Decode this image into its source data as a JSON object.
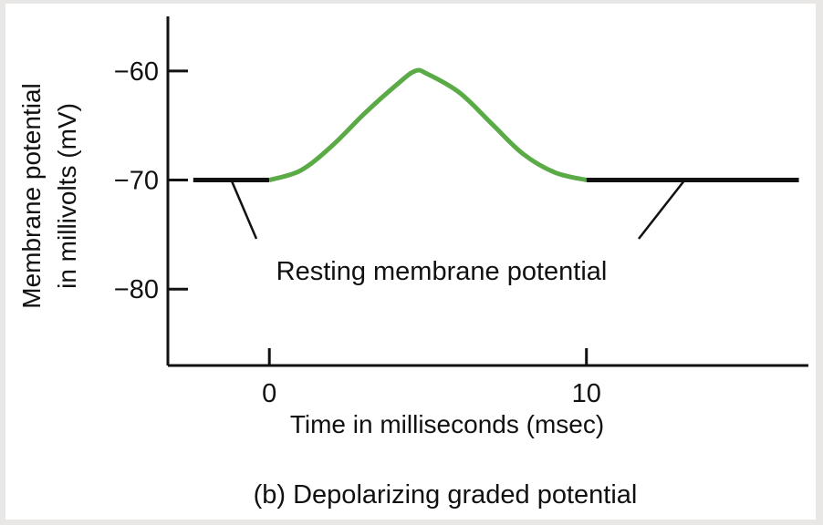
{
  "chart_data": {
    "type": "line",
    "xlabel": "Time in milliseconds (msec)",
    "ylabel_lines": [
      "Membrane potential",
      "in millivolts (mV)"
    ],
    "caption": "(b) Depolarizing graded potential",
    "annotation": "Resting membrane potential",
    "x_ticks": [
      0,
      10
    ],
    "x_tick_labels": [
      "0",
      "10"
    ],
    "y_ticks": [
      -60,
      -70,
      -80
    ],
    "y_tick_labels": [
      "−60",
      "−70",
      "−80"
    ],
    "xlim": [
      -3.2,
      17
    ],
    "ylim": [
      -87,
      -55
    ],
    "grid": false,
    "series": [
      {
        "role": "resting-before",
        "color": "#111111",
        "x": [
          -2.4,
          0
        ],
        "y": [
          -70,
          -70
        ]
      },
      {
        "role": "graded-potential",
        "color": "#5aaa46",
        "x": [
          0,
          1,
          2,
          3,
          4,
          4.6,
          5,
          6,
          7,
          8,
          9,
          10
        ],
        "y": [
          -70,
          -69.1,
          -66.8,
          -63.9,
          -61.3,
          -60,
          -60.3,
          -62,
          -64.8,
          -67.6,
          -69.3,
          -70
        ]
      },
      {
        "role": "resting-after",
        "color": "#111111",
        "x": [
          10,
          16.7
        ],
        "y": [
          -70,
          -70
        ]
      }
    ],
    "pointer_targets": [
      {
        "x": -1.2,
        "y": -70
      },
      {
        "x": 13.1,
        "y": -70
      }
    ]
  }
}
